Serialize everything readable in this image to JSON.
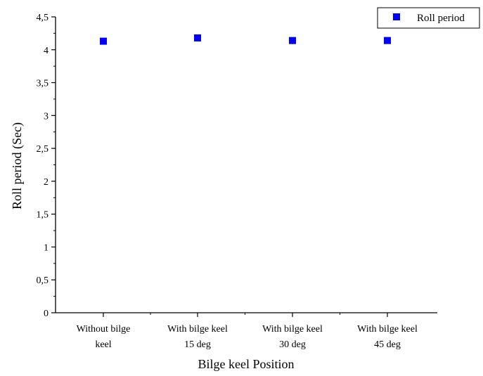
{
  "chart_data": {
    "type": "scatter",
    "title": "",
    "xlabel": "Bilge keel Position",
    "ylabel": "Roll period (Sec)",
    "categories": [
      [
        "Without bilge",
        "keel"
      ],
      [
        "With bilge keel",
        "15 deg"
      ],
      [
        "With bilge keel",
        "30 deg"
      ],
      [
        "With bilge keel",
        "45 deg"
      ]
    ],
    "series": [
      {
        "name": "Roll period",
        "values": [
          4.13,
          4.18,
          4.14,
          4.14
        ],
        "color": "#0000ff",
        "marker": "square"
      }
    ],
    "ylim": [
      0,
      4.5
    ],
    "yticks": [
      "0",
      "0,5",
      "1",
      "1,5",
      "2",
      "2,5",
      "3",
      "3,5",
      "4",
      "4,5"
    ],
    "legend_position": "top-right",
    "grid": false
  }
}
